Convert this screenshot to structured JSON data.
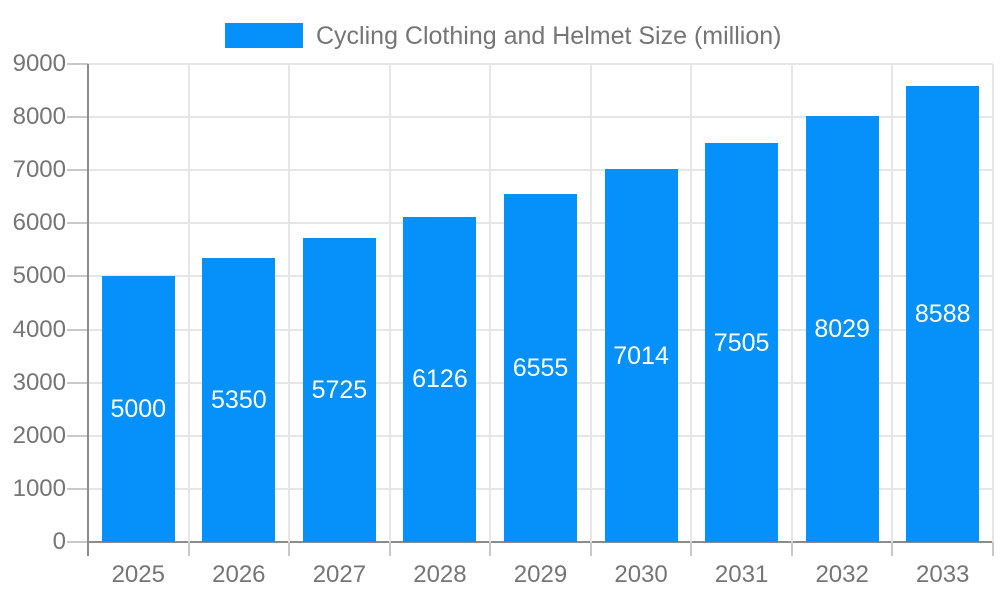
{
  "chart_data": {
    "type": "bar",
    "title": "Cycling Clothing and Helmet Size (million)",
    "categories": [
      "2025",
      "2026",
      "2027",
      "2028",
      "2029",
      "2030",
      "2031",
      "2032",
      "2033"
    ],
    "values": [
      5000,
      5350,
      5725,
      6126,
      6555,
      7014,
      7505,
      8029,
      8588
    ],
    "xlabel": "",
    "ylabel": "",
    "ylim": [
      0,
      9000
    ],
    "yticks": [
      0,
      1000,
      2000,
      3000,
      4000,
      5000,
      6000,
      7000,
      8000,
      9000
    ],
    "grid": true,
    "legend_position": "top-center",
    "colors": {
      "bar": "#0590fa",
      "gridline": "#e6e6e6",
      "axis_line": "#8c8c8c",
      "tick": "#c9c9c9",
      "axis_text": "#757575",
      "value_text": "#ffffff",
      "background": "#ffffff"
    }
  }
}
